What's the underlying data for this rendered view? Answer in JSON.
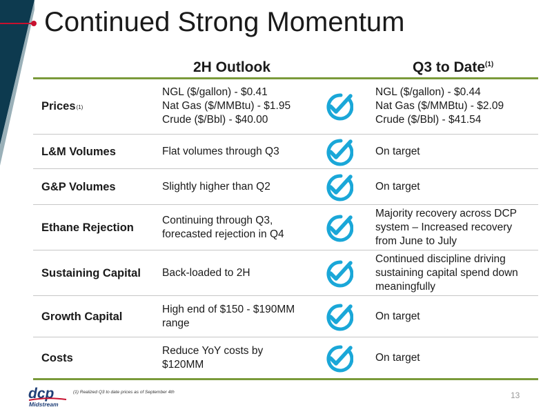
{
  "slide": {
    "title": "Continued Strong Momentum",
    "page_number": "13",
    "footnote": "(1)    Realized Q3 to date prices as of September 4th",
    "logo_text": "dcp Midstream"
  },
  "table": {
    "header_outlook": "2H Outlook",
    "header_q3": "Q3 to Date",
    "header_q3_sup": "(1)",
    "rows": [
      {
        "label": "Prices",
        "sup": "(1)",
        "outlook": [
          "NGL ($/gallon) - $0.41",
          "Nat Gas ($/MMBtu) - $1.95",
          "Crude ($/Bbl) - $40.00"
        ],
        "q3": [
          "NGL ($/gallon) - $0.44",
          "Nat Gas ($/MMBtu) - $2.09",
          "Crude ($/Bbl) - $41.54"
        ]
      },
      {
        "label": "L&M Volumes",
        "sup": "",
        "outlook": [
          "Flat volumes through Q3"
        ],
        "q3": [
          "On target"
        ]
      },
      {
        "label": "G&P Volumes",
        "sup": "",
        "outlook": [
          "Slightly higher than Q2"
        ],
        "q3": [
          "On target"
        ]
      },
      {
        "label": "Ethane Rejection",
        "sup": "",
        "outlook": [
          "Continuing through Q3,",
          "forecasted rejection in Q4"
        ],
        "q3": [
          "Majority recovery across DCP",
          "system – Increased recovery",
          "from June to July"
        ]
      },
      {
        "label": "Sustaining Capital",
        "sup": "",
        "outlook": [
          "Back-loaded to 2H"
        ],
        "q3": [
          "Continued discipline driving",
          "sustaining capital spend down",
          "meaningfully"
        ]
      },
      {
        "label": "Growth Capital",
        "sup": "",
        "outlook": [
          "High end of $150 - $190MM",
          "range"
        ],
        "q3": [
          "On target"
        ]
      },
      {
        "label": "Costs",
        "sup": "",
        "outlook": [
          "Reduce YoY costs by",
          "$120MM"
        ],
        "q3": [
          "On target"
        ]
      }
    ]
  },
  "colors": {
    "check": "#1aa7d8",
    "accent_red": "#c8102e",
    "rule_green": "#7a9a3a",
    "corner_dark": "#0d3a4f"
  },
  "icons": {
    "row_status": "checkmark-badge-icon"
  }
}
